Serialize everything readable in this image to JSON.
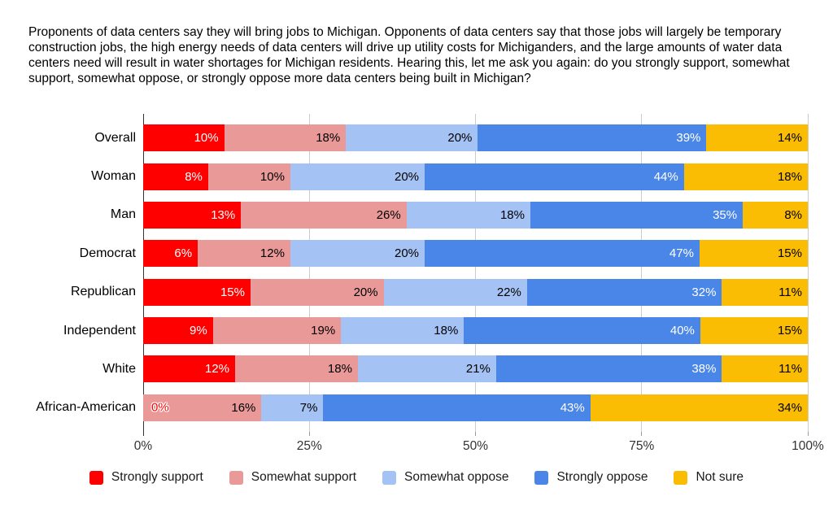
{
  "chart_data": {
    "type": "bar",
    "stacked": true,
    "orientation": "horizontal",
    "title": "Proponents of data centers say they will bring jobs to Michigan. Opponents of data centers say that those jobs will largely be temporary construction jobs, the high energy needs of data centers will drive up utility costs for Michiganders, and the large amounts of water data centers need will result in water shortages for Michigan residents. Hearing this, let me ask you again: do you strongly support, somewhat support, somewhat oppose, or strongly oppose more data centers being built in Michigan?",
    "categories": [
      "Overall",
      "Woman",
      "Man",
      "Democrat",
      "Republican",
      "Independent",
      "White",
      "African-American"
    ],
    "series": [
      {
        "name": "Strongly support",
        "color": "#FF0000",
        "label_color": "#FFFFFF",
        "values": [
          10,
          8,
          13,
          6,
          15,
          9,
          12,
          0
        ]
      },
      {
        "name": "Somewhat support",
        "color": "#EA9999",
        "label_color": "#000000",
        "values": [
          18,
          10,
          26,
          12,
          20,
          19,
          18,
          16
        ]
      },
      {
        "name": "Somewhat oppose",
        "color": "#A4C2F4",
        "label_color": "#000000",
        "values": [
          20,
          20,
          18,
          20,
          22,
          18,
          21,
          7
        ]
      },
      {
        "name": "Strongly oppose",
        "color": "#4A86E8",
        "label_color": "#FFFFFF",
        "values": [
          39,
          44,
          35,
          47,
          32,
          40,
          38,
          43
        ]
      },
      {
        "name": "Not sure",
        "color": "#FBBC04",
        "label_color": "#000000",
        "values": [
          14,
          18,
          8,
          15,
          11,
          15,
          11,
          34
        ]
      }
    ],
    "value_suffix": "%",
    "x_ticks": [
      0,
      25,
      50,
      75,
      100
    ],
    "x_tick_labels": [
      "0%",
      "25%",
      "50%",
      "75%",
      "100%"
    ],
    "xlim": [
      0,
      100
    ],
    "grid": true,
    "legend_position": "bottom",
    "zero_label_style": {
      "color": "#FF0000",
      "outline": "#FFFFFF"
    }
  },
  "colors": {
    "background": "#FFFFFF",
    "axis_line": "#333333",
    "gridline": "#CCCCCC",
    "tick": "#999999"
  }
}
